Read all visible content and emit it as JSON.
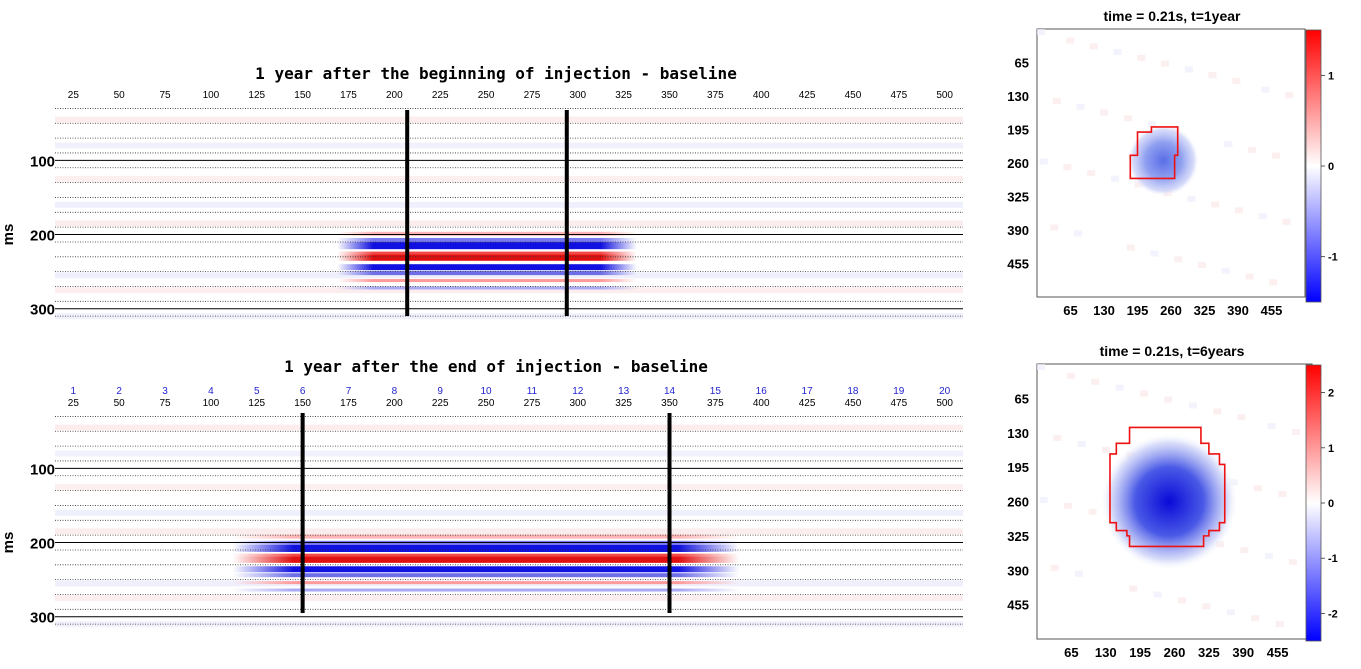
{
  "chart_data": [
    {
      "type": "heatmap",
      "title": "1 year after the beginning of injection - baseline",
      "ylabel": "ms",
      "x_ticks": [
        25,
        50,
        75,
        100,
        125,
        150,
        175,
        200,
        225,
        250,
        275,
        300,
        325,
        350,
        375,
        400,
        425,
        450,
        475,
        500
      ],
      "y_ticks": [
        100,
        200,
        300
      ],
      "ylim": [
        20,
        330
      ],
      "vertical_markers": [
        207,
        294
      ],
      "anomaly": {
        "x_range": [
          207,
          294
        ],
        "blue_ms": 215,
        "red_ms": 230,
        "blue2_ms": 244
      },
      "colors": {
        "positive": "#e11010",
        "negative": "#1010e0"
      }
    },
    {
      "type": "heatmap",
      "title": "1 year after the end of injection - baseline",
      "ylabel": "ms",
      "trace_numbers": [
        "1",
        "2",
        "3",
        "4",
        "5",
        "6",
        "7",
        "8",
        "9",
        "10",
        "11",
        "12",
        "13",
        "14",
        "15",
        "16",
        "17",
        "18",
        "19",
        "20"
      ],
      "x_ticks": [
        25,
        50,
        75,
        100,
        125,
        150,
        175,
        200,
        225,
        250,
        275,
        300,
        325,
        350,
        375,
        400,
        425,
        450,
        475,
        500
      ],
      "y_ticks": [
        100,
        200,
        300
      ],
      "ylim": [
        20,
        330
      ],
      "vertical_markers": [
        150,
        350
      ],
      "anomaly": {
        "x_range": [
          150,
          350
        ],
        "blue_ms": 208,
        "red_ms": 222,
        "blue2_ms": 236
      },
      "colors": {
        "positive": "#e11010",
        "negative": "#1010e0",
        "trace_numbers": "#1f1fd0"
      }
    },
    {
      "type": "heatmap",
      "title": "time = 0.21s, t=1year",
      "x_ticks": [
        65,
        130,
        195,
        260,
        325,
        390,
        455
      ],
      "y_ticks": [
        65,
        130,
        195,
        260,
        325,
        390,
        455
      ],
      "xlim": [
        0,
        520
      ],
      "ylim": [
        0,
        520
      ],
      "center": [
        245,
        255
      ],
      "radius": 70,
      "colorbar": {
        "ticks": [
          "1",
          "0",
          "-1"
        ],
        "values": [
          1,
          0,
          -1
        ],
        "range": [
          -1.5,
          1.5
        ]
      },
      "outline_polygon": [
        [
          195,
          200
        ],
        [
          195,
          245
        ],
        [
          181,
          245
        ],
        [
          181,
          290
        ],
        [
          267,
          290
        ],
        [
          267,
          245
        ],
        [
          273,
          245
        ],
        [
          273,
          190
        ],
        [
          222,
          190
        ],
        [
          222,
          200
        ]
      ]
    },
    {
      "type": "heatmap",
      "title": "time = 0.21s, t=6years",
      "x_ticks": [
        65,
        130,
        195,
        260,
        325,
        390,
        455
      ],
      "y_ticks": [
        65,
        130,
        195,
        260,
        325,
        390,
        455
      ],
      "xlim": [
        0,
        520
      ],
      "ylim": [
        0,
        520
      ],
      "center": [
        250,
        260
      ],
      "radius": 130,
      "colorbar": {
        "ticks": [
          "2",
          "1",
          "0",
          "-1",
          "-2"
        ],
        "values": [
          2,
          1,
          0,
          -1,
          -2
        ],
        "range": [
          -2.5,
          2.5
        ]
      },
      "outline_polygon": [
        [
          175,
          120
        ],
        [
          175,
          150
        ],
        [
          150,
          150
        ],
        [
          150,
          170
        ],
        [
          138,
          170
        ],
        [
          138,
          300
        ],
        [
          150,
          300
        ],
        [
          150,
          315
        ],
        [
          170,
          315
        ],
        [
          170,
          325
        ],
        [
          175,
          325
        ],
        [
          175,
          345
        ],
        [
          315,
          345
        ],
        [
          315,
          325
        ],
        [
          325,
          325
        ],
        [
          325,
          315
        ],
        [
          345,
          315
        ],
        [
          345,
          300
        ],
        [
          355,
          300
        ],
        [
          355,
          190
        ],
        [
          345,
          190
        ],
        [
          345,
          170
        ],
        [
          325,
          170
        ],
        [
          325,
          150
        ],
        [
          310,
          150
        ],
        [
          310,
          120
        ]
      ]
    }
  ]
}
